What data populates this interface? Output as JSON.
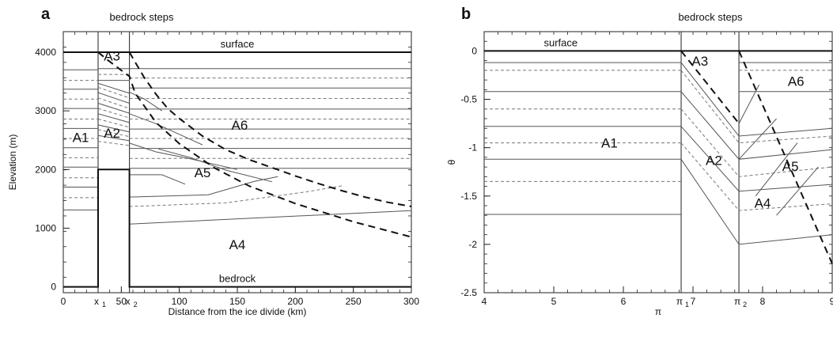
{
  "chart_data": [
    {
      "panel": "a",
      "type": "line",
      "xlabel": "Distance from the ice divide (km)",
      "ylabel": "Elevation (m)",
      "xlim": [
        0,
        300
      ],
      "ylim": [
        -100,
        4350
      ],
      "xticks": [
        0,
        50,
        100,
        150,
        200,
        250,
        300
      ],
      "yticks": [
        0,
        1000,
        2000,
        3000,
        4000
      ],
      "grid": false,
      "markers": [
        {
          "label": "x",
          "sub": "1",
          "x": 30
        },
        {
          "label": "x",
          "sub": "2",
          "x": 57
        }
      ],
      "annotations": {
        "bedrock_steps": "bedrock steps",
        "surface": "surface",
        "bedrock": "bedrock"
      },
      "regions": [
        {
          "name": "A1",
          "x": 15,
          "y": 2470
        },
        {
          "name": "A2",
          "x": 42,
          "y": 2540
        },
        {
          "name": "A3",
          "x": 42,
          "y": 3860
        },
        {
          "name": "A4",
          "x": 150,
          "y": 640
        },
        {
          "name": "A5",
          "x": 120,
          "y": 1870
        },
        {
          "name": "A6",
          "x": 152,
          "y": 2680
        }
      ],
      "surface": {
        "x": [
          0,
          300
        ],
        "y": [
          4000,
          4000
        ]
      },
      "bedrock": {
        "x": [
          0,
          30,
          30,
          57,
          57,
          300
        ],
        "y": [
          0,
          0,
          2000,
          2000,
          0,
          0
        ]
      },
      "dashed_boundaries": [
        {
          "x": [
            30,
            38,
            46,
            54,
            57,
            62,
            80,
            100,
            130,
            160,
            200,
            250,
            300
          ],
          "y": [
            4000,
            3870,
            3750,
            3630,
            3590,
            3300,
            2800,
            2440,
            2030,
            1720,
            1420,
            1110,
            850
          ]
        },
        {
          "x": [
            57,
            62,
            70,
            80,
            90,
            100,
            120,
            140,
            160,
            180,
            200,
            220,
            240,
            260,
            280,
            300
          ],
          "y": [
            4000,
            3830,
            3560,
            3280,
            3040,
            2870,
            2570,
            2340,
            2170,
            2030,
            1890,
            1760,
            1640,
            1530,
            1440,
            1370
          ]
        }
      ],
      "A1_layers": {
        "solid": [
          4000,
          3700,
          3370,
          3040,
          2700,
          2370,
          2040,
          1700,
          1310
        ],
        "dashed": [
          3520,
          3200,
          2860,
          2530,
          2200,
          1860,
          1520
        ]
      },
      "layers_A6": {
        "solid": [
          3720,
          3390,
          3030,
          2690,
          2360,
          2020
        ],
        "dashed": [
          3560,
          3210,
          2860,
          2530,
          2190
        ]
      },
      "layers_A3": {
        "solid": [
          3720,
          3520
        ],
        "dashed": [
          3620
        ]
      },
      "layers_A2": [
        {
          "style": "solid",
          "y": [
            3470,
            3300
          ]
        },
        {
          "style": "dashed",
          "y": [
            3400,
            3220
          ]
        },
        {
          "style": "solid",
          "y": [
            3310,
            3130
          ]
        },
        {
          "style": "dashed",
          "y": [
            3220,
            3040
          ]
        },
        {
          "style": "solid",
          "y": [
            3130,
            2960
          ]
        },
        {
          "style": "dashed",
          "y": [
            3040,
            2880
          ]
        },
        {
          "style": "solid",
          "y": [
            2950,
            2800
          ]
        },
        {
          "style": "dashed",
          "y": [
            2860,
            2720
          ]
        },
        {
          "style": "solid",
          "y": [
            2760,
            2640
          ]
        },
        {
          "style": "dashed",
          "y": [
            2680,
            2560
          ]
        },
        {
          "style": "solid",
          "y": [
            2580,
            2490
          ]
        },
        {
          "style": "dashed",
          "y": [
            2480,
            2410
          ]
        }
      ],
      "layers_A5": [
        {
          "style": "solid",
          "x": [
            57,
            85,
            105
          ],
          "y": [
            1910,
            1910,
            1750
          ]
        },
        {
          "style": "solid",
          "x": [
            57,
            125,
            165,
            185
          ],
          "y": [
            1530,
            1570,
            1800,
            1880
          ]
        },
        {
          "style": "dashed",
          "x": [
            57,
            140,
            210,
            240
          ],
          "y": [
            1370,
            1430,
            1620,
            1720
          ]
        },
        {
          "style": "solid",
          "x": [
            57,
            300
          ],
          "y": [
            1070,
            1300
          ]
        }
      ],
      "diagonals": [
        {
          "x": [
            57,
            70,
            85
          ],
          "y": [
            3320,
            3200,
            3000
          ]
        },
        {
          "x": [
            57,
            80,
            100,
            120
          ],
          "y": [
            2950,
            2780,
            2600,
            2420
          ]
        },
        {
          "x": [
            57,
            80,
            110,
            150
          ],
          "y": [
            2450,
            2300,
            2180,
            2000
          ]
        },
        {
          "x": [
            82,
            110,
            140,
            180
          ],
          "y": [
            2350,
            2200,
            1990,
            1790
          ]
        }
      ]
    },
    {
      "panel": "b",
      "type": "line",
      "xlabel": "π",
      "ylabel": "θ",
      "xlim": [
        4,
        9
      ],
      "ylim": [
        -2.5,
        0.2
      ],
      "xticks": [
        4,
        5,
        6,
        7,
        8,
        9
      ],
      "yticks": [
        0,
        -0.5,
        -1,
        -1.5,
        -2,
        -2.5
      ],
      "grid": false,
      "markers": [
        {
          "label": "π",
          "sub": "1",
          "x": 6.83
        },
        {
          "label": "π",
          "sub": "2",
          "x": 7.66
        }
      ],
      "annotations": {
        "bedrock_steps": "bedrock steps",
        "surface": "surface"
      },
      "regions": [
        {
          "name": "A1",
          "x": 5.8,
          "y": -1.0
        },
        {
          "name": "A2",
          "x": 7.3,
          "y": -1.18
        },
        {
          "name": "A3",
          "x": 7.1,
          "y": -0.15
        },
        {
          "name": "A4",
          "x": 8.0,
          "y": -1.62
        },
        {
          "name": "A5",
          "x": 8.4,
          "y": -1.24
        },
        {
          "name": "A6",
          "x": 8.48,
          "y": -0.36
        }
      ],
      "surface": {
        "x": [
          4,
          9
        ],
        "y": [
          0,
          0
        ]
      },
      "dashed_boundaries": [
        {
          "x": [
            6.83,
            7.66
          ],
          "y": [
            0,
            -0.75
          ]
        },
        {
          "x": [
            7.66,
            9
          ],
          "y": [
            0,
            -2.2
          ]
        }
      ],
      "A1_layers": {
        "solid": [
          -0.12,
          -0.42,
          -0.78,
          -1.12,
          -1.69
        ],
        "dashed": [
          -0.2,
          -0.6,
          -0.95,
          -1.35
        ]
      },
      "layers_right": [
        {
          "style": "solid",
          "x": [
            6.83,
            7.66,
            9
          ],
          "y": [
            -0.12,
            -0.88,
            -0.8
          ]
        },
        {
          "style": "dashed",
          "x": [
            6.83,
            7.66,
            9
          ],
          "y": [
            -0.2,
            -0.95,
            -0.88
          ]
        },
        {
          "style": "solid",
          "x": [
            6.83,
            7.66,
            9
          ],
          "y": [
            -0.42,
            -1.12,
            -1.02
          ]
        },
        {
          "style": "dashed",
          "x": [
            6.83,
            7.66,
            9
          ],
          "y": [
            -0.6,
            -1.3,
            -1.2
          ]
        },
        {
          "style": "solid",
          "x": [
            6.83,
            7.66,
            9
          ],
          "y": [
            -0.78,
            -1.45,
            -1.38
          ]
        },
        {
          "style": "dashed",
          "x": [
            6.83,
            7.66,
            9
          ],
          "y": [
            -0.95,
            -1.65,
            -1.58
          ]
        },
        {
          "style": "solid",
          "x": [
            6.83,
            7.66,
            9
          ],
          "y": [
            -1.12,
            -2.0,
            -1.9
          ]
        }
      ],
      "layers_top_right": {
        "solid": [
          -0.12,
          -0.42
        ],
        "dashed": [
          -0.2
        ]
      },
      "diagonals": [
        {
          "x": [
            7.66,
            7.95
          ],
          "y": [
            -0.75,
            -0.35
          ]
        },
        {
          "x": [
            7.66,
            8.2
          ],
          "y": [
            -1.12,
            -0.7
          ]
        },
        {
          "x": [
            7.9,
            8.5
          ],
          "y": [
            -1.5,
            -0.95
          ]
        },
        {
          "x": [
            8.2,
            8.8
          ],
          "y": [
            -1.7,
            -1.2
          ]
        }
      ]
    }
  ],
  "panel_labels": [
    "a",
    "b"
  ]
}
